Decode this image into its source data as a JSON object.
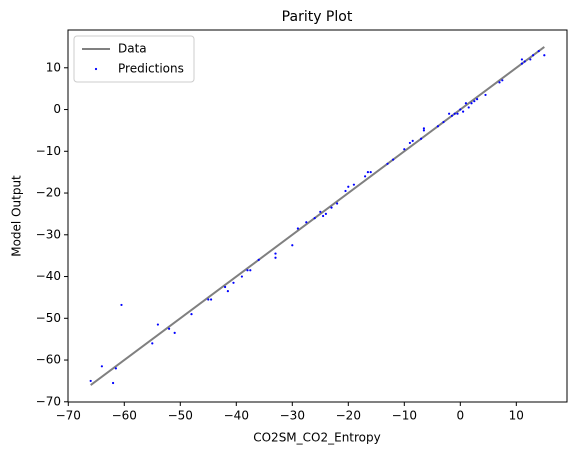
{
  "chart_data": {
    "type": "scatter",
    "title": "Parity Plot",
    "x_label": "CO2SM_CO2_Entropy",
    "y_label": "Model Output",
    "xlim": [
      -70.05,
      19.05
    ],
    "ylim": [
      -70.05,
      19.05
    ],
    "xticks": [
      {
        "value": -70,
        "label": "−70"
      },
      {
        "value": -60,
        "label": "−60"
      },
      {
        "value": -50,
        "label": "−50"
      },
      {
        "value": -40,
        "label": "−40"
      },
      {
        "value": -30,
        "label": "−30"
      },
      {
        "value": -20,
        "label": "−20"
      },
      {
        "value": -10,
        "label": "−10"
      },
      0,
      10
    ],
    "yticks": [
      {
        "value": -70,
        "label": "−70"
      },
      {
        "value": -60,
        "label": "−60"
      },
      {
        "value": -50,
        "label": "−50"
      },
      {
        "value": -40,
        "label": "−40"
      },
      {
        "value": -30,
        "label": "−30"
      },
      {
        "value": -20,
        "label": "−20"
      },
      {
        "value": -10,
        "label": "−10"
      },
      0,
      10
    ],
    "legend": "upper left",
    "series": [
      {
        "name": "Data",
        "color": "#808080",
        "kind": "line",
        "x": [
          -66,
          15
        ],
        "values": [
          -66,
          15
        ]
      },
      {
        "name": "Predictions",
        "color": "#0000ff",
        "kind": "scatter",
        "x": [
          -66,
          -64,
          -62,
          -61.5,
          -60.5,
          -55,
          -54,
          -52,
          -51,
          -48,
          -45,
          -44.5,
          -42,
          -41.5,
          -40.5,
          -39,
          -38,
          -37.5,
          -36,
          -33,
          -33,
          -30,
          -29,
          -27.5,
          -26,
          -25,
          -24.5,
          -24,
          -23,
          -22,
          -20.5,
          -20,
          -19,
          -17,
          -16.5,
          -16,
          -13,
          -12,
          -10,
          -9,
          -8.5,
          -7,
          -6.5,
          -6.5,
          -4,
          -3,
          -2,
          -1.5,
          -1,
          -0.5,
          0,
          0.5,
          1,
          1.5,
          2,
          2.5,
          3,
          4.5,
          7,
          7.5,
          11,
          11.5,
          12.5,
          13,
          15,
          11,
          14
        ],
        "values": [
          -65,
          -61.5,
          -65.5,
          -62,
          -46.8,
          -56,
          -51.5,
          -52.5,
          -53.5,
          -49,
          -45.5,
          -45.5,
          -42.5,
          -43.5,
          -41.5,
          -40,
          -38.5,
          -38.5,
          -36,
          -34.5,
          -35.5,
          -32.5,
          -28.5,
          -27,
          -26,
          -24.5,
          -25.5,
          -25,
          -23.5,
          -22.5,
          -19.5,
          -18.5,
          -18,
          -16,
          -15,
          -15,
          -13,
          -12,
          -9.5,
          -8,
          -7.5,
          -7,
          -5,
          -4.5,
          -4,
          -3,
          -1,
          -1.5,
          -1,
          -1,
          0,
          -0.5,
          1.5,
          0.5,
          1.5,
          2,
          2.5,
          3.5,
          6.5,
          7,
          11,
          11.5,
          12,
          13,
          13,
          12,
          14
        ]
      }
    ]
  }
}
